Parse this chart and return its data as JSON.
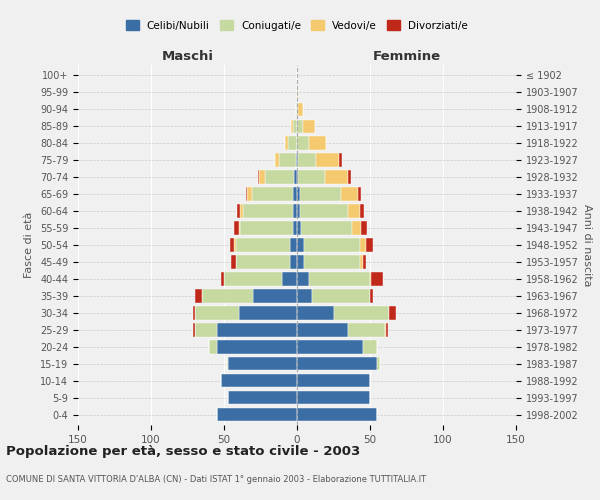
{
  "age_groups": [
    "0-4",
    "5-9",
    "10-14",
    "15-19",
    "20-24",
    "25-29",
    "30-34",
    "35-39",
    "40-44",
    "45-49",
    "50-54",
    "55-59",
    "60-64",
    "65-69",
    "70-74",
    "75-79",
    "80-84",
    "85-89",
    "90-94",
    "95-99",
    "100+"
  ],
  "birth_years": [
    "1998-2002",
    "1993-1997",
    "1988-1992",
    "1983-1987",
    "1978-1982",
    "1973-1977",
    "1968-1972",
    "1963-1967",
    "1958-1962",
    "1953-1957",
    "1948-1952",
    "1943-1947",
    "1938-1942",
    "1933-1937",
    "1928-1932",
    "1923-1927",
    "1918-1922",
    "1913-1917",
    "1908-1912",
    "1903-1907",
    "≤ 1902"
  ],
  "maschi": {
    "celibi": [
      55,
      47,
      52,
      47,
      55,
      55,
      40,
      30,
      10,
      5,
      5,
      3,
      3,
      3,
      2,
      1,
      0,
      0,
      0,
      0,
      0
    ],
    "coniugati": [
      0,
      0,
      0,
      1,
      5,
      15,
      30,
      35,
      40,
      37,
      37,
      36,
      34,
      28,
      20,
      11,
      6,
      3,
      1,
      0,
      0
    ],
    "vedovi": [
      0,
      0,
      0,
      0,
      0,
      0,
      0,
      0,
      0,
      0,
      1,
      1,
      2,
      3,
      4,
      3,
      2,
      1,
      0,
      0,
      0
    ],
    "divorziati": [
      0,
      0,
      0,
      0,
      0,
      1,
      1,
      5,
      2,
      3,
      3,
      3,
      2,
      1,
      1,
      0,
      0,
      0,
      0,
      0,
      0
    ]
  },
  "femmine": {
    "nubili": [
      55,
      50,
      50,
      55,
      45,
      35,
      25,
      10,
      8,
      5,
      5,
      3,
      2,
      2,
      1,
      1,
      0,
      0,
      0,
      0,
      0
    ],
    "coniugate": [
      0,
      0,
      0,
      2,
      10,
      25,
      38,
      40,
      42,
      38,
      38,
      35,
      33,
      28,
      18,
      12,
      8,
      4,
      1,
      0,
      0
    ],
    "vedove": [
      0,
      0,
      0,
      0,
      0,
      1,
      0,
      0,
      1,
      2,
      4,
      6,
      8,
      12,
      16,
      16,
      12,
      8,
      3,
      1,
      0
    ],
    "divorziate": [
      0,
      0,
      0,
      0,
      0,
      1,
      5,
      2,
      8,
      2,
      5,
      4,
      3,
      2,
      2,
      2,
      0,
      0,
      0,
      0,
      0
    ]
  },
  "colors": {
    "celibi_nubili": "#3a6ea5",
    "coniugati_e": "#c5d9a0",
    "vedovi_e": "#f5c96e",
    "divorziati_e": "#c0281a"
  },
  "title": "Popolazione per età, sesso e stato civile - 2003",
  "subtitle": "COMUNE DI SANTA VITTORIA D'ALBA (CN) - Dati ISTAT 1° gennaio 2003 - Elaborazione TUTTITALIA.IT",
  "xlabel_left": "Maschi",
  "xlabel_right": "Femmine",
  "ylabel_left": "Fasce di età",
  "ylabel_right": "Anni di nascita",
  "xlim": 150,
  "xticks": [
    -150,
    -100,
    -50,
    0,
    50,
    100,
    150
  ],
  "legend_labels": [
    "Celibi/Nubili",
    "Coniugati/e",
    "Vedovi/e",
    "Divorziati/e"
  ],
  "background_color": "#f0f0f0"
}
